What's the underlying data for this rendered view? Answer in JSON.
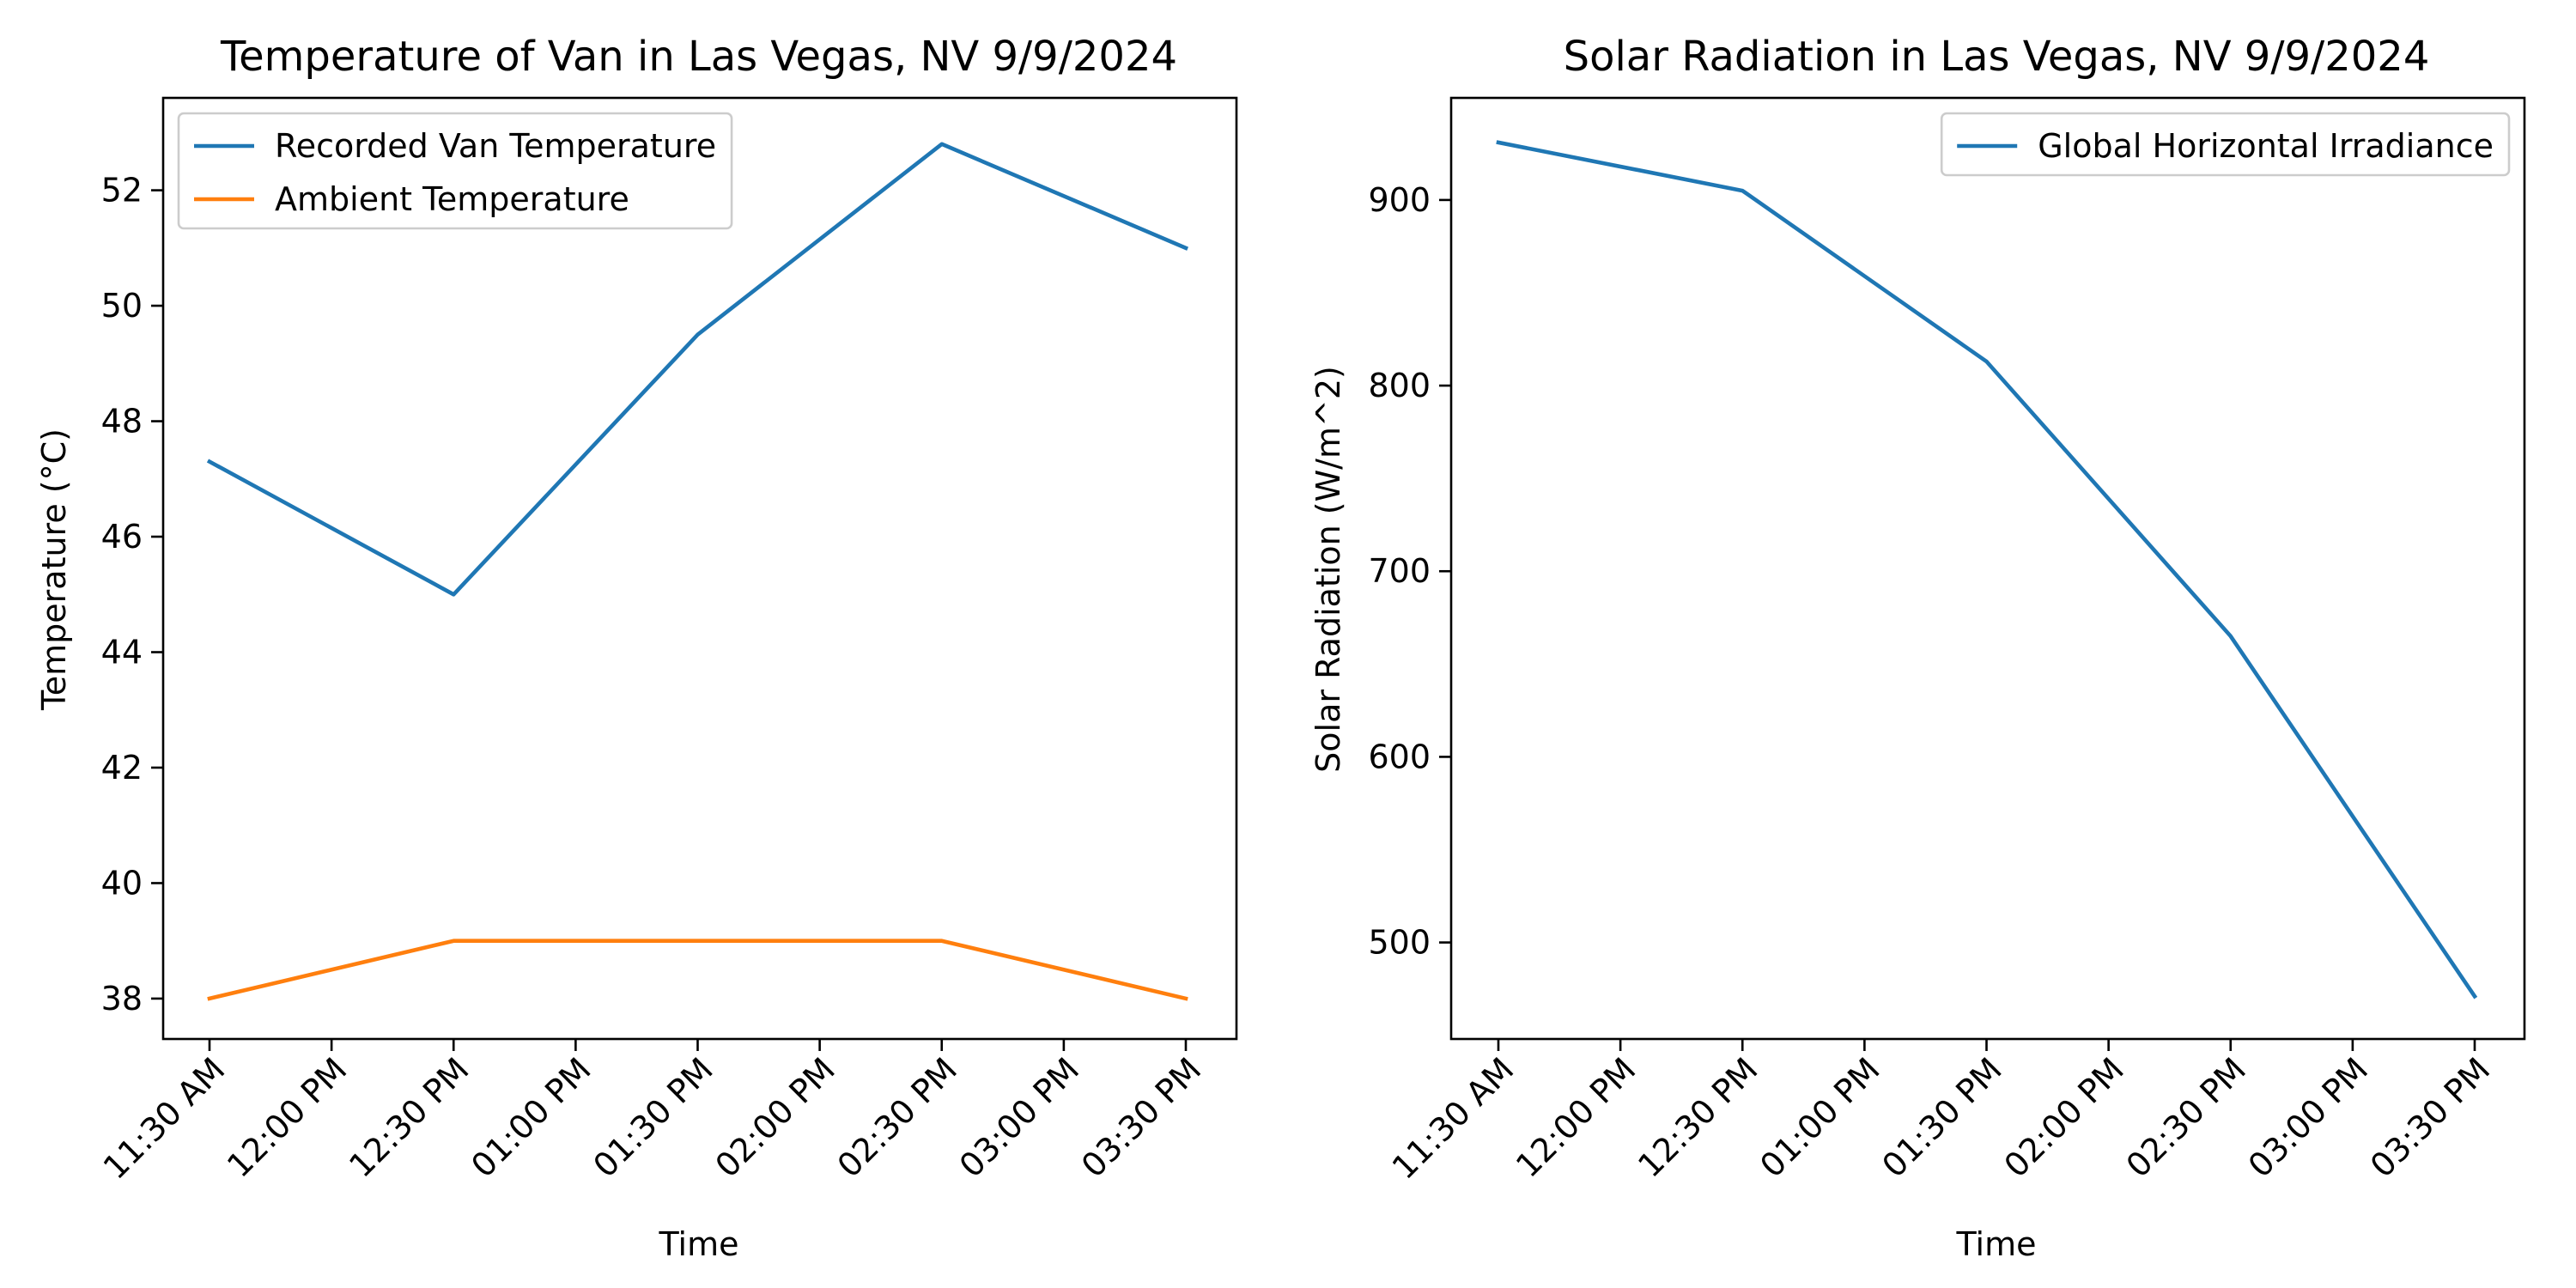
{
  "chart_data": [
    {
      "type": "line",
      "title": "Temperature of Van in Las Vegas, NV 9/9/2024",
      "xlabel": "Time",
      "ylabel": "Temperature (°C)",
      "x_ticks": [
        "11:30 AM",
        "12:00 PM",
        "12:30 PM",
        "01:00 PM",
        "01:30 PM",
        "02:00 PM",
        "02:30 PM",
        "03:00 PM",
        "03:30 PM"
      ],
      "y_ticks": [
        38,
        40,
        42,
        44,
        46,
        48,
        50,
        52
      ],
      "ylim": [
        37.3,
        53.6
      ],
      "grid": false,
      "legend_position": "upper left",
      "series": [
        {
          "name": "Recorded Van Temperature",
          "color": "#1f77b4",
          "x": [
            "11:30 AM",
            "12:30 PM",
            "01:30 PM",
            "02:30 PM",
            "03:30 PM"
          ],
          "values": [
            47.3,
            45.0,
            49.5,
            52.8,
            51.0
          ]
        },
        {
          "name": "Ambient Temperature",
          "color": "#ff7f0e",
          "x": [
            "11:30 AM",
            "12:30 PM",
            "01:30 PM",
            "02:30 PM",
            "03:30 PM"
          ],
          "values": [
            38,
            39,
            39,
            39,
            38
          ]
        }
      ]
    },
    {
      "type": "line",
      "title": "Solar Radiation in Las Vegas, NV 9/9/2024",
      "xlabel": "Time",
      "ylabel": "Solar Radiation (W/m^2)",
      "x_ticks": [
        "11:30 AM",
        "12:00 PM",
        "12:30 PM",
        "01:00 PM",
        "01:30 PM",
        "02:00 PM",
        "02:30 PM",
        "03:00 PM",
        "03:30 PM"
      ],
      "y_ticks": [
        500,
        600,
        700,
        800,
        900
      ],
      "ylim": [
        448,
        955
      ],
      "grid": false,
      "legend_position": "upper right",
      "series": [
        {
          "name": "Global Horizontal Irradiance",
          "color": "#1f77b4",
          "x": [
            "11:30 AM",
            "12:30 PM",
            "01:30 PM",
            "02:30 PM",
            "03:30 PM"
          ],
          "values": [
            931,
            905,
            813,
            665,
            471
          ]
        }
      ]
    }
  ]
}
